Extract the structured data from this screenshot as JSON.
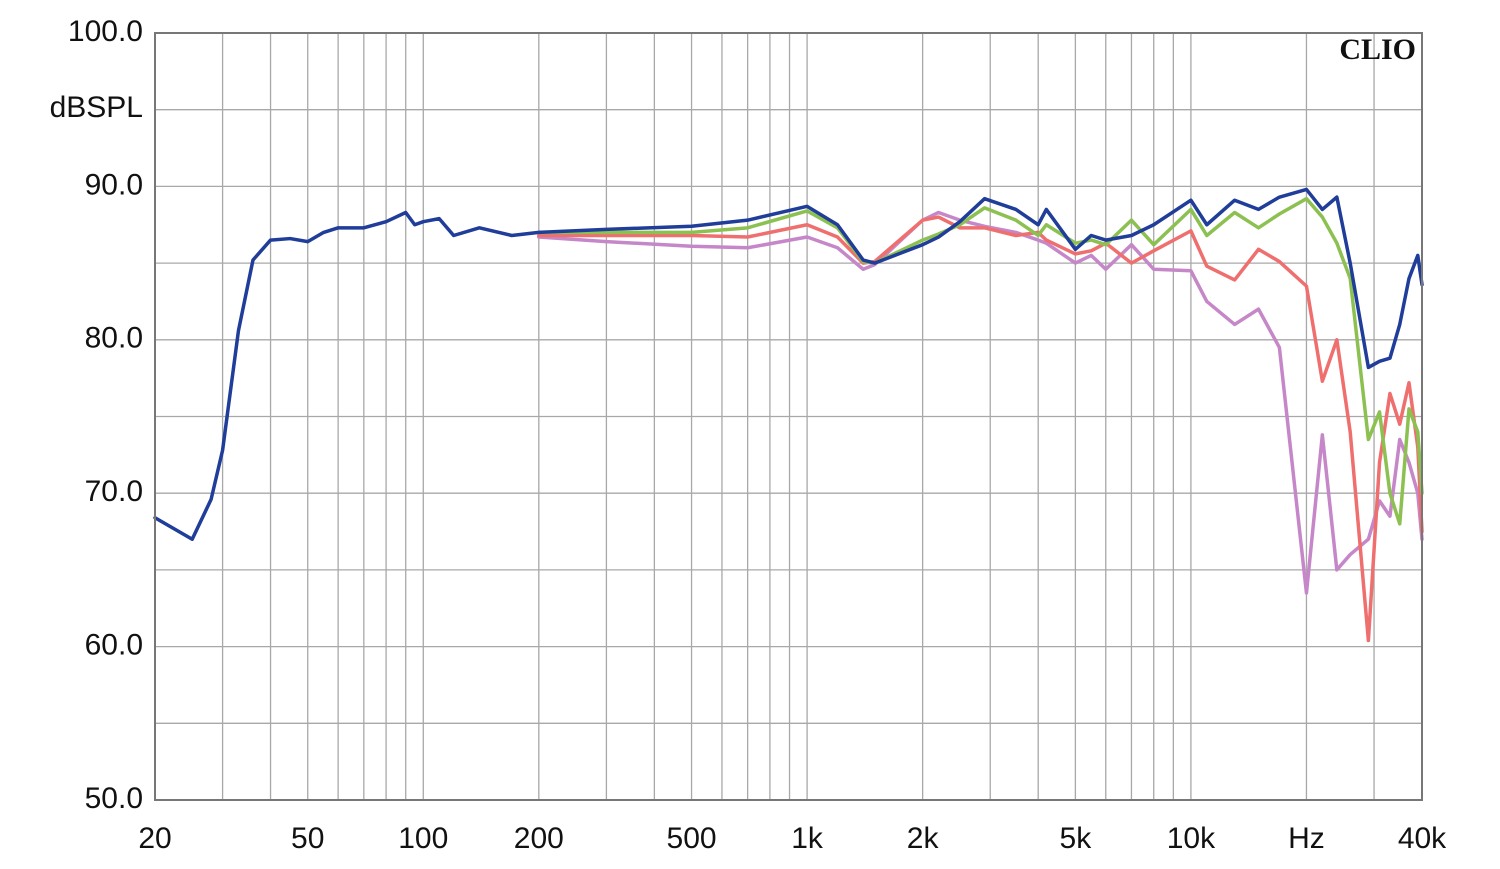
{
  "chart_data": {
    "type": "line",
    "ylabel": "dBSPL",
    "watermark": "CLIO",
    "xscale": "log",
    "grid": true,
    "xlim": [
      20,
      40000
    ],
    "ylim": [
      50,
      100
    ],
    "xticks": [
      20,
      50,
      100,
      200,
      500,
      {
        "value": 1000,
        "label": "1k"
      },
      {
        "value": 2000,
        "label": "2k"
      },
      {
        "value": 5000,
        "label": "5k"
      },
      {
        "value": 10000,
        "label": "10k"
      },
      {
        "value": 20000,
        "label": "Hz"
      },
      {
        "value": 40000,
        "label": "40k"
      }
    ],
    "x_minor_ticks": [
      30,
      40,
      60,
      70,
      80,
      90,
      300,
      400,
      600,
      700,
      800,
      900,
      3000,
      4000,
      6000,
      7000,
      8000,
      9000,
      30000
    ],
    "yticks": [
      {
        "value": 50,
        "label": "50.0"
      },
      {
        "value": 60,
        "label": "60.0"
      },
      {
        "value": 70,
        "label": "70.0"
      },
      {
        "value": 80,
        "label": "80.0"
      },
      {
        "value": 90,
        "label": "90.0"
      },
      {
        "value": 100,
        "label": "100.0"
      }
    ],
    "y_minor_ticks": [
      55,
      65,
      75,
      85,
      95
    ],
    "x": [
      20,
      25,
      28,
      30,
      33,
      36,
      40,
      45,
      50,
      55,
      60,
      70,
      80,
      90,
      95,
      100,
      110,
      120,
      140,
      170,
      200,
      300,
      500,
      700,
      1000,
      1200,
      1400,
      1500,
      2000,
      2200,
      2500,
      2900,
      3500,
      4000,
      4200,
      5000,
      5500,
      6000,
      7000,
      8000,
      10000,
      11000,
      13000,
      15000,
      17000,
      20000,
      22000,
      24000,
      26000,
      29000,
      31000,
      33000,
      35000,
      37000,
      39000,
      40000
    ],
    "series": [
      {
        "color": "#c687c9",
        "values": [
          null,
          null,
          null,
          null,
          null,
          null,
          null,
          null,
          null,
          null,
          null,
          null,
          null,
          null,
          null,
          null,
          null,
          null,
          null,
          null,
          86.7,
          86.4,
          86.1,
          86.0,
          86.7,
          86.0,
          84.6,
          84.9,
          87.8,
          88.3,
          87.8,
          87.4,
          87.0,
          86.5,
          86.3,
          85.0,
          85.5,
          84.6,
          86.2,
          84.6,
          84.5,
          82.5,
          81.0,
          82.0,
          79.5,
          63.5,
          73.8,
          65.0,
          66.0,
          67.0,
          69.5,
          68.5,
          73.5,
          72.0,
          70.0,
          67.0
        ]
      },
      {
        "color": "#ef6f6f",
        "values": [
          null,
          null,
          null,
          null,
          null,
          null,
          null,
          null,
          null,
          null,
          null,
          null,
          null,
          null,
          null,
          null,
          null,
          null,
          null,
          null,
          86.8,
          86.8,
          86.8,
          86.7,
          87.5,
          86.7,
          85.0,
          85.1,
          87.8,
          88.0,
          87.3,
          87.3,
          86.8,
          87.0,
          86.5,
          85.6,
          85.8,
          86.3,
          85.0,
          85.8,
          87.1,
          84.8,
          83.9,
          85.9,
          85.1,
          83.5,
          77.3,
          80.0,
          74.0,
          60.4,
          72.0,
          76.5,
          74.5,
          77.2,
          73.0,
          67.5
        ]
      },
      {
        "color": "#8cc152",
        "values": [
          null,
          null,
          null,
          null,
          null,
          null,
          null,
          null,
          null,
          null,
          null,
          null,
          null,
          null,
          null,
          null,
          null,
          null,
          null,
          null,
          87.0,
          87.0,
          87.0,
          87.3,
          88.4,
          87.3,
          85.1,
          85.0,
          86.5,
          86.9,
          87.5,
          88.6,
          87.8,
          86.8,
          87.5,
          86.3,
          86.5,
          86.2,
          87.8,
          86.2,
          88.5,
          86.8,
          88.3,
          87.3,
          88.2,
          89.2,
          88.0,
          86.3,
          84.0,
          73.5,
          75.3,
          70.0,
          68.0,
          75.5,
          74.0,
          70.0
        ]
      },
      {
        "color": "#1f3d99",
        "values": [
          68.4,
          67.0,
          69.6,
          72.8,
          80.6,
          85.2,
          86.5,
          86.6,
          86.4,
          87.0,
          87.3,
          87.3,
          87.7,
          88.3,
          87.5,
          87.7,
          87.9,
          86.8,
          87.3,
          86.8,
          87.0,
          87.2,
          87.4,
          87.8,
          88.7,
          87.5,
          85.2,
          85.0,
          86.2,
          86.7,
          87.7,
          89.2,
          88.5,
          87.5,
          88.5,
          85.9,
          86.8,
          86.5,
          86.8,
          87.5,
          89.1,
          87.5,
          89.1,
          88.5,
          89.3,
          89.8,
          88.5,
          89.3,
          85.0,
          78.2,
          78.6,
          78.8,
          81.0,
          84.0,
          85.5,
          83.6
        ]
      }
    ]
  }
}
